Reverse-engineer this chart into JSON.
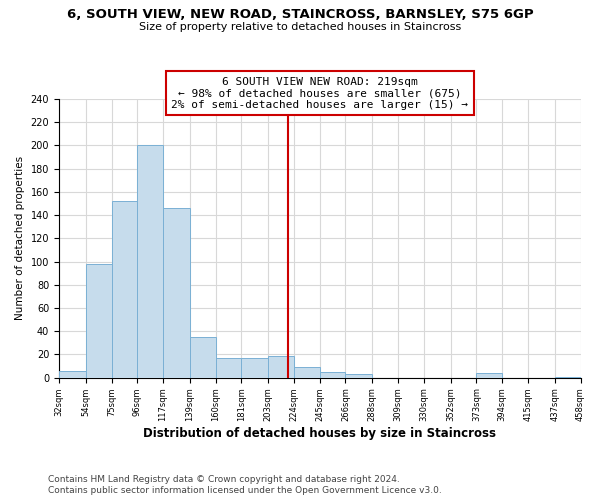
{
  "title": "6, SOUTH VIEW, NEW ROAD, STAINCROSS, BARNSLEY, S75 6GP",
  "subtitle": "Size of property relative to detached houses in Staincross",
  "xlabel": "Distribution of detached houses by size in Staincross",
  "ylabel": "Number of detached properties",
  "bin_edges": [
    32,
    54,
    75,
    96,
    117,
    139,
    160,
    181,
    203,
    224,
    245,
    266,
    288,
    309,
    330,
    352,
    373,
    394,
    415,
    437,
    458
  ],
  "bar_heights": [
    6,
    98,
    152,
    200,
    146,
    35,
    17,
    17,
    19,
    9,
    5,
    3,
    0,
    0,
    0,
    0,
    4,
    0,
    0,
    1
  ],
  "bar_color": "#c6dcec",
  "bar_edgecolor": "#7ab0d4",
  "vline_x": 219,
  "vline_color": "#cc0000",
  "annotation_line1": "6 SOUTH VIEW NEW ROAD: 219sqm",
  "annotation_line2": "← 98% of detached houses are smaller (675)",
  "annotation_line3": "2% of semi-detached houses are larger (15) →",
  "annotation_box_edgecolor": "#cc0000",
  "ylim": [
    0,
    240
  ],
  "yticks": [
    0,
    20,
    40,
    60,
    80,
    100,
    120,
    140,
    160,
    180,
    200,
    220,
    240
  ],
  "footer_line1": "Contains HM Land Registry data © Crown copyright and database right 2024.",
  "footer_line2": "Contains public sector information licensed under the Open Government Licence v3.0.",
  "background_color": "#ffffff",
  "grid_color": "#d8d8d8",
  "title_fontsize": 9.5,
  "subtitle_fontsize": 8,
  "ylabel_fontsize": 7.5,
  "xlabel_fontsize": 8.5,
  "tick_fontsize": 6,
  "annotation_fontsize": 8,
  "footer_fontsize": 6.5
}
